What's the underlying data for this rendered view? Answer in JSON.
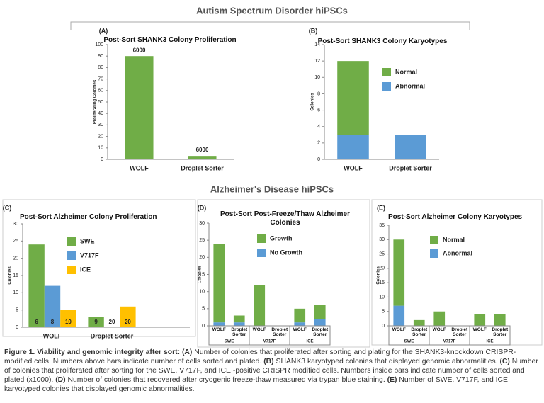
{
  "headings": [
    "Autism Spectrum Disorder hiPSCs",
    "Alzheimer's Disease hiPSCs"
  ],
  "chart_data": [
    {
      "type": "bar",
      "panel": "(A)",
      "title": "Post-Sort SHANK3 Colony Proliferation",
      "y_label": "Proliferating Colonies",
      "categories": [
        "WOLF",
        "Droplet Sorter"
      ],
      "values": [
        90,
        3
      ],
      "color": "#70ad47",
      "cells_sorted": [
        6000,
        6000
      ],
      "ylim": [
        0,
        100
      ],
      "yticks": [
        0,
        10,
        20,
        30,
        40,
        50,
        60,
        70,
        80,
        90,
        100
      ]
    },
    {
      "type": "bar",
      "stacked": true,
      "panel": "(B)",
      "title": "Post-Sort SHANK3 Colony Karyotypes",
      "y_label": "Colonies",
      "categories": [
        "WOLF",
        "Droplet Sorter"
      ],
      "series": [
        {
          "name": "Normal",
          "color": "#70ad47",
          "values": [
            9,
            0
          ]
        },
        {
          "name": "Abnormal",
          "color": "#5b9bd5",
          "values": [
            3,
            3
          ]
        }
      ],
      "ylim": [
        0,
        14
      ],
      "yticks": [
        0,
        2,
        4,
        6,
        8,
        10,
        12,
        14
      ]
    },
    {
      "type": "bar",
      "panel": "(C)",
      "title": "Post-Sort Alzheimer Colony Proliferation",
      "y_label": "Colonies",
      "categories": [
        "WOLF",
        "Droplet Sorter"
      ],
      "series": [
        {
          "name": "SWE",
          "color": "#70ad47",
          "values": [
            24,
            3
          ],
          "cells_sorted": [
            6,
            9
          ]
        },
        {
          "name": "V717F",
          "color": "#5b9bd5",
          "values": [
            12,
            0
          ],
          "cells_sorted": [
            8,
            20
          ]
        },
        {
          "name": "ICE",
          "color": "#ffc000",
          "values": [
            5,
            6
          ],
          "cells_sorted": [
            10,
            20
          ]
        }
      ],
      "ylim": [
        0,
        30
      ],
      "yticks": [
        0,
        5,
        10,
        15,
        20,
        25,
        30
      ]
    },
    {
      "type": "bar",
      "stacked": true,
      "panel": "(D)",
      "title": "Post-Sort Post-Freeze/Thaw Alzheimer Colonies",
      "y_label": "Colonies",
      "categories": [
        "WOLF",
        "Droplet Sorter",
        "WOLF",
        "Droplet Sorter",
        "WOLF",
        "Droplet Sorter"
      ],
      "groups": [
        "SWE",
        "V717F",
        "ICE"
      ],
      "series": [
        {
          "name": "Growth",
          "color": "#70ad47",
          "values": [
            23,
            2,
            12,
            0,
            4,
            4
          ]
        },
        {
          "name": "No Growth",
          "color": "#5b9bd5",
          "values": [
            1,
            1,
            0,
            0,
            1,
            2
          ]
        }
      ],
      "ylim": [
        0,
        30
      ],
      "yticks": [
        0,
        5,
        10,
        15,
        20,
        25,
        30
      ]
    },
    {
      "type": "bar",
      "stacked": true,
      "panel": "(E)",
      "title": "Post-Sort Alzheimer Colony Karyotypes",
      "y_label": "Colonies",
      "categories": [
        "WOLF",
        "Droplet Sorter",
        "WOLF",
        "Droplet Sorter",
        "WOLF",
        "Droplet Sorter"
      ],
      "groups": [
        "SWE",
        "V717F",
        "ICE"
      ],
      "series": [
        {
          "name": "Normal",
          "color": "#70ad47",
          "values": [
            23,
            2,
            5,
            0,
            4,
            4
          ]
        },
        {
          "name": "Abnormal",
          "color": "#5b9bd5",
          "values": [
            7,
            0,
            0,
            0,
            0,
            0
          ]
        }
      ],
      "ylim": [
        0,
        35
      ],
      "yticks": [
        0,
        5,
        10,
        15,
        20,
        25,
        30,
        35
      ]
    }
  ],
  "caption": [
    {
      "text": "Figure 1. Viability and genomic integrity after sort: ",
      "bold": true
    },
    {
      "text": "(A)",
      "bold": true
    },
    {
      "text": " Number of colonies that proliferated after sorting and plating for the SHANK3-knockdown CRISPR-modified cells. Numbers above bars indicate number of cells sorted and plated. ",
      "bold": false
    },
    {
      "text": "(B)",
      "bold": true
    },
    {
      "text": " SHANK3 karyotyped colonies that displayed genomic abnormalities. ",
      "bold": false
    },
    {
      "text": "(C)",
      "bold": true
    },
    {
      "text": " Number of colonies that proliferated after sorting for the SWE, V717F, and ICE -positive CRISPR modified cells. Numbers inside bars indicate number of cells sorted and plated (x1000). ",
      "bold": false
    },
    {
      "text": "(D)",
      "bold": true
    },
    {
      "text": " Number of colonies that recovered after cryogenic freeze-thaw measured via trypan blue staining. ",
      "bold": false
    },
    {
      "text": "(E)",
      "bold": true
    },
    {
      "text": " Number of SWE, V717F, and ICE karyotyped colonies that displayed genomic abnormalities.",
      "bold": false
    }
  ]
}
